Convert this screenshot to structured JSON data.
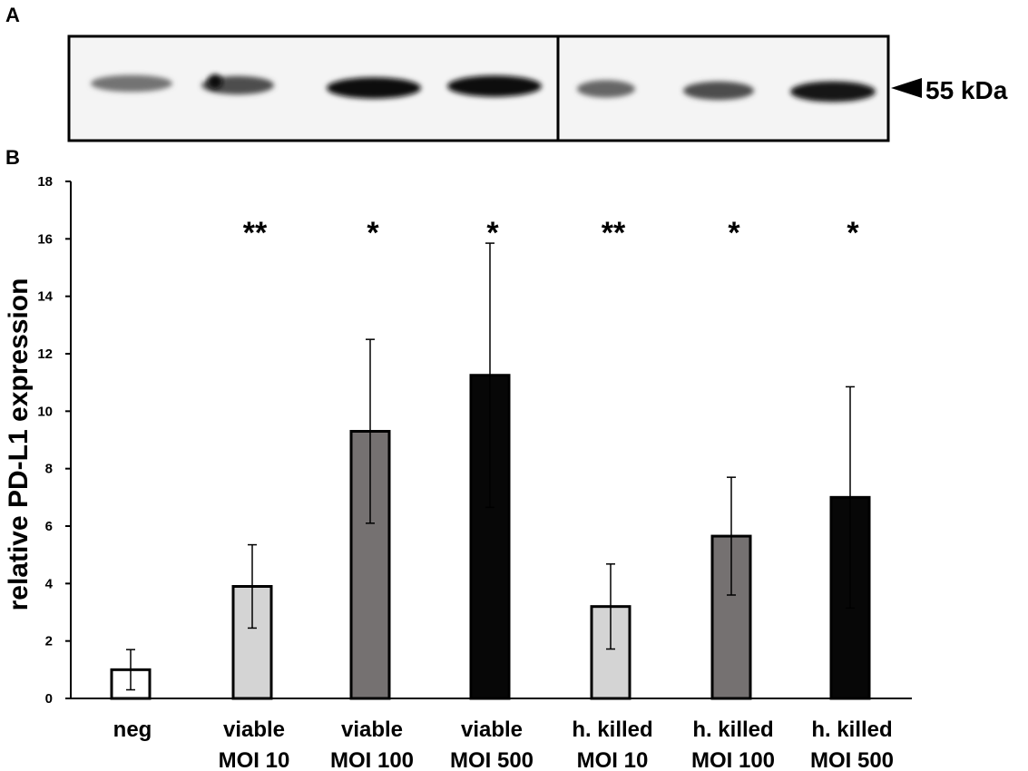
{
  "panels": {
    "a_label": "A",
    "b_label": "B"
  },
  "blot": {
    "marker_label": "55 kDa",
    "bands": [
      {
        "lane": 1,
        "intensity": 0.55
      },
      {
        "lane": 2,
        "intensity": 0.7
      },
      {
        "lane": 3,
        "intensity": 0.95
      },
      {
        "lane": 4,
        "intensity": 0.95
      },
      {
        "lane": 5,
        "intensity": 0.6
      },
      {
        "lane": 6,
        "intensity": 0.7
      },
      {
        "lane": 7,
        "intensity": 0.9
      }
    ]
  },
  "chart_data": {
    "type": "bar",
    "title": "",
    "xlabel": "",
    "ylabel": "relative PD-L1 expression",
    "ylim": [
      0,
      18
    ],
    "yticks": [
      0,
      2,
      4,
      6,
      8,
      10,
      12,
      14,
      16,
      18
    ],
    "grid": false,
    "categories": [
      [
        "neg"
      ],
      [
        "viable",
        "MOI 10"
      ],
      [
        "viable",
        "MOI 100"
      ],
      [
        "viable",
        "MOI 500"
      ],
      [
        "h. killed",
        "MOI 10"
      ],
      [
        "h. killed",
        "MOI 100"
      ],
      [
        "h. killed",
        "MOI 500"
      ]
    ],
    "values": [
      1.0,
      3.9,
      9.3,
      11.25,
      3.2,
      5.65,
      7.0
    ],
    "errors": [
      0.7,
      1.45,
      3.2,
      4.6,
      1.48,
      2.05,
      3.85
    ],
    "significance": [
      "",
      "**",
      "*",
      "*",
      "**",
      "*",
      "*"
    ],
    "colors": [
      "#ffffff",
      "#d4d4d4",
      "#757171",
      "#070707",
      "#d4d4d4",
      "#757171",
      "#070707"
    ]
  }
}
